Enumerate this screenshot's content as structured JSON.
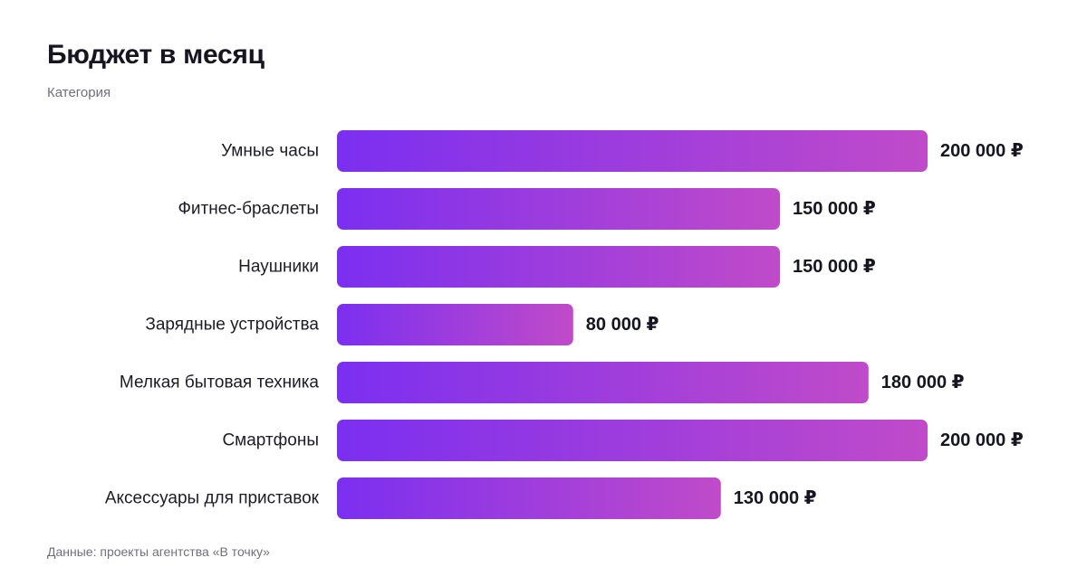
{
  "header": {
    "title": "Бюджет в месяц",
    "subtitle": "Категория"
  },
  "footer": {
    "source": "Данные: проекты агентства «В точку»"
  },
  "colors": {
    "bar_gradient_start": "#7b2ff0",
    "bar_gradient_end": "#c04bc9",
    "text_dark": "#161622",
    "text_muted": "#6f6f80"
  },
  "chart_data": {
    "type": "bar",
    "orientation": "horizontal",
    "title": "Бюджет в месяц",
    "subtitle": "Категория",
    "categories": [
      "Умные часы",
      "Фитнес-браслеты",
      "Наушники",
      "Зарядные устройства",
      "Мелкая бытовая техника",
      "Смартфоны",
      "Аксессуары для приставок"
    ],
    "values": [
      200000,
      150000,
      150000,
      80000,
      180000,
      200000,
      130000
    ],
    "value_labels": [
      "200 000 ₽",
      "150 000 ₽",
      "150 000 ₽",
      "80 000 ₽",
      "180 000 ₽",
      "200 000 ₽",
      "130 000 ₽"
    ],
    "unit": "₽",
    "xlim": [
      0,
      200000
    ],
    "grid": false,
    "legend": "none"
  }
}
